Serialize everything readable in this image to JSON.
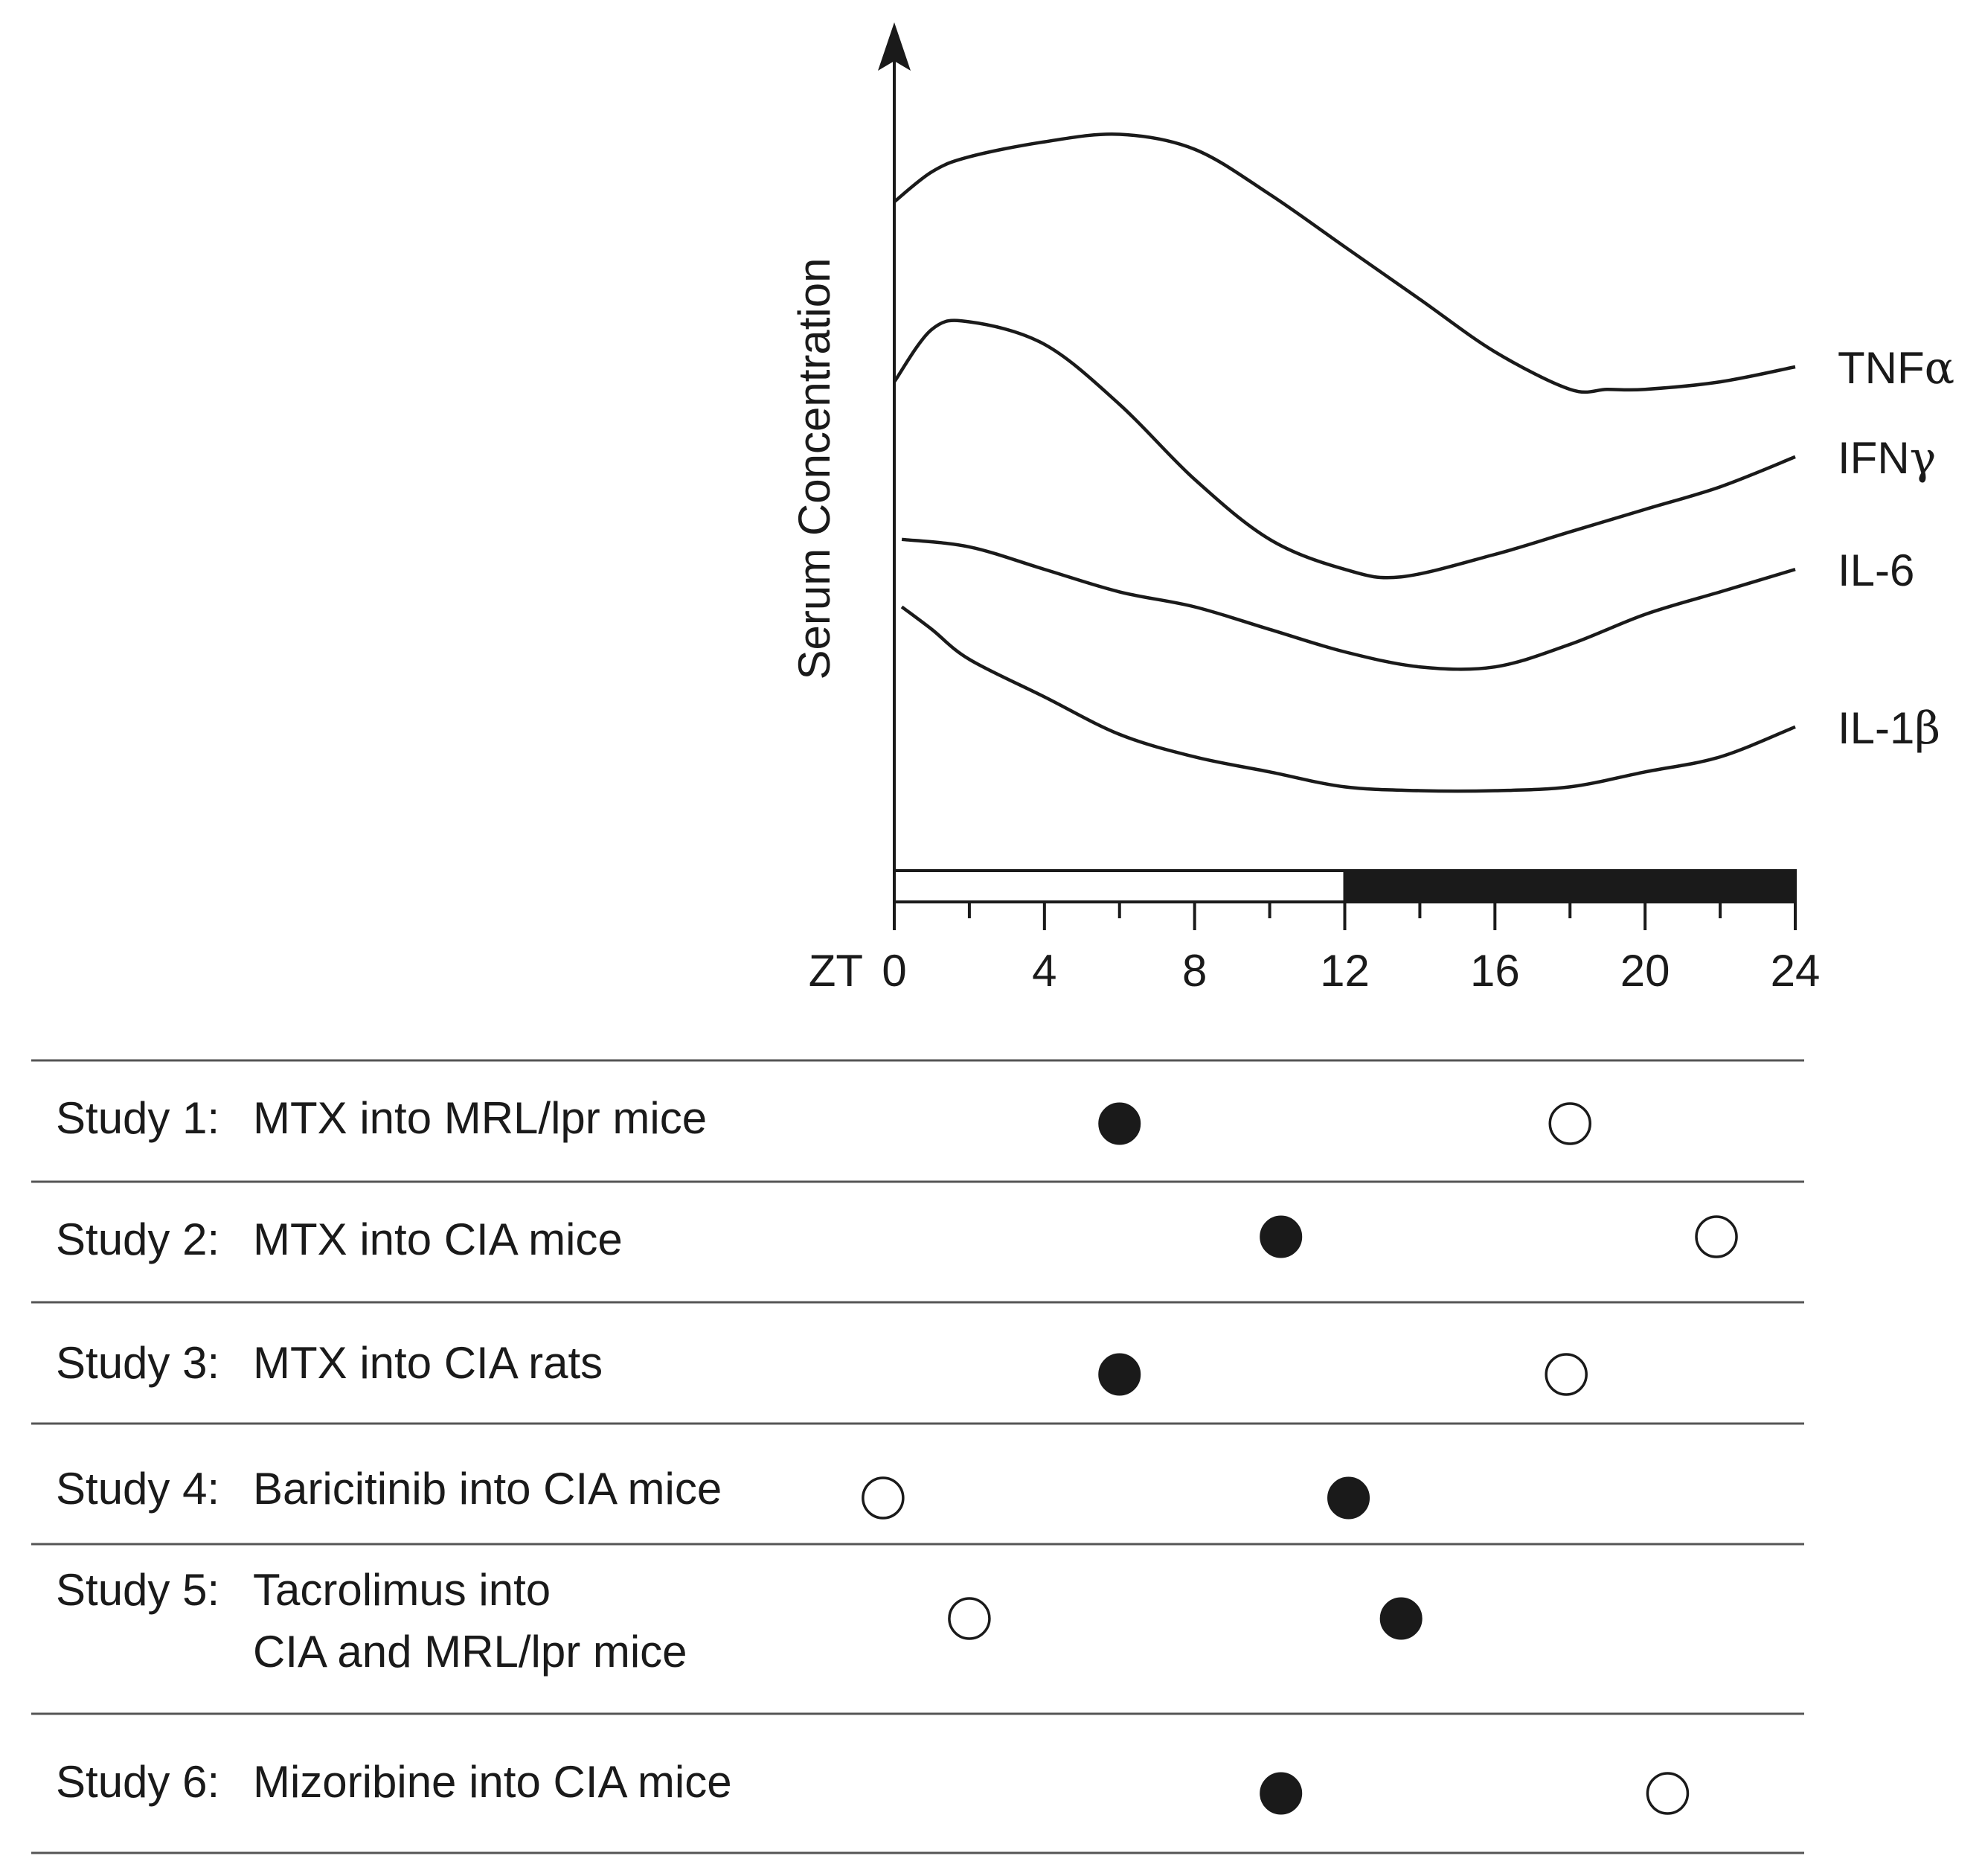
{
  "chart_data": {
    "type": "line",
    "ylabel": "Serum Concentration",
    "xlabel_prefix": "ZT",
    "xlim": [
      0,
      24
    ],
    "x_ticks": [
      0,
      4,
      8,
      12,
      16,
      20,
      24
    ],
    "x_minor_ticks": [
      2,
      6,
      10,
      14,
      18,
      22
    ],
    "light_dark_bar": {
      "light": [
        0,
        12
      ],
      "dark": [
        12,
        24
      ]
    },
    "y_units": "relative (unlabeled axis, 0 = baseline, 100 = top)",
    "series": [
      {
        "name": "TNFα",
        "label_main": "TNF",
        "label_greek": "α",
        "x": [
          0,
          1,
          2,
          4,
          6,
          8,
          10,
          12,
          14,
          16,
          18,
          19,
          20,
          22,
          24
        ],
        "y": [
          85,
          89,
          91,
          93,
          94,
          92,
          86,
          79,
          72,
          65,
          60,
          60,
          60,
          61,
          63
        ]
      },
      {
        "name": "IFNγ",
        "label_main": "IFN",
        "label_greek": "γ",
        "x": [
          0,
          1,
          2,
          4,
          6,
          8,
          10,
          12,
          13.5,
          16,
          18,
          20,
          22,
          24
        ],
        "y": [
          61,
          68,
          69,
          66,
          58,
          48,
          40,
          36,
          35,
          38,
          41,
          44,
          47,
          51
        ]
      },
      {
        "name": "IL-6",
        "label_main": "IL-6",
        "label_greek": "",
        "x": [
          0.2,
          2,
          4,
          6,
          8,
          10,
          12,
          14,
          16,
          18,
          20,
          22,
          24
        ],
        "y": [
          40,
          39,
          36,
          33,
          31,
          28,
          25,
          23,
          23,
          26,
          30,
          33,
          36
        ]
      },
      {
        "name": "IL-1β",
        "label_main": "IL-1",
        "label_greek": "β",
        "x": [
          0.2,
          1,
          2,
          4,
          6,
          8,
          10,
          12,
          14,
          16,
          18,
          20,
          22,
          24
        ],
        "y": [
          31,
          28,
          24,
          19,
          14,
          11,
          9,
          7,
          6.5,
          6.5,
          7,
          9,
          11,
          15
        ]
      }
    ],
    "studies": [
      {
        "label": "Study 1:",
        "desc": [
          "MTX into MRL/lpr mice"
        ],
        "filled": 6,
        "open": 18
      },
      {
        "label": "Study 2:",
        "desc": [
          "MTX into CIA mice"
        ],
        "filled": 10.3,
        "open": 21.9
      },
      {
        "label": "Study 3:",
        "desc": [
          "MTX into CIA rats"
        ],
        "filled": 6,
        "open": 17.9
      },
      {
        "label": "Study 4:",
        "desc": [
          "Baricitinib into CIA mice"
        ],
        "filled": 12.1,
        "open": -0.3
      },
      {
        "label": "Study 5:",
        "desc": [
          "Tacrolimus into",
          "CIA and MRL/lpr mice"
        ],
        "filled": 13.5,
        "open": 2
      },
      {
        "label": "Study 6:",
        "desc": [
          "Mizoribine into CIA mice"
        ],
        "filled": 10.3,
        "open": 20.6
      }
    ]
  }
}
